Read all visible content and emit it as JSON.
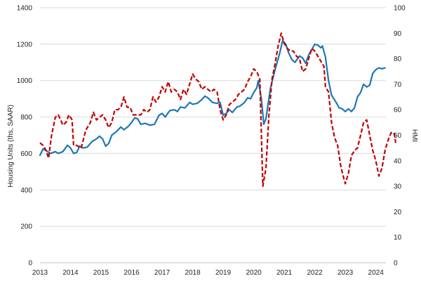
{
  "chart_data": {
    "type": "line",
    "title": "",
    "xlabel": "",
    "ylabel_left": "Housing Units (ths, SAAR)",
    "ylabel_right": "HMI",
    "ylim_left": [
      0,
      1400
    ],
    "ylim_right": [
      0,
      100
    ],
    "yticks_left": [
      "0",
      "200",
      "400",
      "600",
      "800",
      "1000",
      "1200",
      "1400"
    ],
    "yticks_right": [
      "0",
      "10",
      "20",
      "30",
      "40",
      "50",
      "60",
      "70",
      "80",
      "90",
      "100"
    ],
    "xticks": [
      "2013",
      "2014",
      "2015",
      "2016",
      "2017",
      "2018",
      "2019",
      "2020",
      "2021",
      "2022",
      "2023",
      "2024"
    ],
    "xlim": [
      2013.0,
      2024.33
    ],
    "grid": true,
    "legend": "none",
    "series": [
      {
        "axis": "left",
        "color": "#1f77b4",
        "style": "solid",
        "points": [
          [
            2013.0,
            590
          ],
          [
            2013.1,
            625
          ],
          [
            2013.2,
            615
          ],
          [
            2013.35,
            600
          ],
          [
            2013.5,
            610
          ],
          [
            2013.6,
            600
          ],
          [
            2013.75,
            610
          ],
          [
            2013.9,
            645
          ],
          [
            2014.0,
            630
          ],
          [
            2014.1,
            600
          ],
          [
            2014.2,
            605
          ],
          [
            2014.3,
            640
          ],
          [
            2014.4,
            630
          ],
          [
            2014.55,
            635
          ],
          [
            2014.7,
            665
          ],
          [
            2014.85,
            680
          ],
          [
            2014.95,
            695
          ],
          [
            2015.05,
            680
          ],
          [
            2015.15,
            640
          ],
          [
            2015.25,
            655
          ],
          [
            2015.35,
            700
          ],
          [
            2015.5,
            720
          ],
          [
            2015.65,
            745
          ],
          [
            2015.75,
            730
          ],
          [
            2015.9,
            750
          ],
          [
            2016.0,
            770
          ],
          [
            2016.1,
            795
          ],
          [
            2016.2,
            790
          ],
          [
            2016.3,
            760
          ],
          [
            2016.45,
            765
          ],
          [
            2016.6,
            755
          ],
          [
            2016.75,
            760
          ],
          [
            2016.9,
            810
          ],
          [
            2017.0,
            820
          ],
          [
            2017.1,
            800
          ],
          [
            2017.25,
            835
          ],
          [
            2017.4,
            840
          ],
          [
            2017.5,
            830
          ],
          [
            2017.6,
            855
          ],
          [
            2017.75,
            850
          ],
          [
            2017.9,
            880
          ],
          [
            2018.0,
            870
          ],
          [
            2018.15,
            875
          ],
          [
            2018.3,
            895
          ],
          [
            2018.4,
            915
          ],
          [
            2018.5,
            905
          ],
          [
            2018.65,
            880
          ],
          [
            2018.8,
            875
          ],
          [
            2018.9,
            880
          ],
          [
            2019.0,
            810
          ],
          [
            2019.1,
            820
          ],
          [
            2019.2,
            840
          ],
          [
            2019.3,
            825
          ],
          [
            2019.45,
            855
          ],
          [
            2019.55,
            860
          ],
          [
            2019.7,
            880
          ],
          [
            2019.8,
            905
          ],
          [
            2019.9,
            900
          ],
          [
            2020.0,
            935
          ],
          [
            2020.1,
            960
          ],
          [
            2020.15,
            1000
          ],
          [
            2020.25,
            900
          ],
          [
            2020.33,
            760
          ],
          [
            2020.4,
            790
          ],
          [
            2020.55,
            960
          ],
          [
            2020.7,
            1060
          ],
          [
            2020.85,
            1150
          ],
          [
            2020.95,
            1220
          ],
          [
            2021.05,
            1200
          ],
          [
            2021.15,
            1150
          ],
          [
            2021.25,
            1115
          ],
          [
            2021.35,
            1100
          ],
          [
            2021.5,
            1135
          ],
          [
            2021.6,
            1125
          ],
          [
            2021.7,
            1095
          ],
          [
            2021.8,
            1140
          ],
          [
            2021.9,
            1170
          ],
          [
            2022.0,
            1200
          ],
          [
            2022.1,
            1195
          ],
          [
            2022.2,
            1180
          ],
          [
            2022.25,
            1190
          ],
          [
            2022.35,
            1130
          ],
          [
            2022.45,
            1000
          ],
          [
            2022.55,
            920
          ],
          [
            2022.7,
            880
          ],
          [
            2022.8,
            850
          ],
          [
            2022.9,
            845
          ],
          [
            2023.0,
            830
          ],
          [
            2023.1,
            845
          ],
          [
            2023.2,
            830
          ],
          [
            2023.3,
            850
          ],
          [
            2023.4,
            910
          ],
          [
            2023.5,
            935
          ],
          [
            2023.6,
            980
          ],
          [
            2023.7,
            965
          ],
          [
            2023.8,
            975
          ],
          [
            2023.9,
            1040
          ],
          [
            2024.0,
            1060
          ],
          [
            2024.1,
            1070
          ],
          [
            2024.2,
            1065
          ],
          [
            2024.3,
            1070
          ]
        ]
      },
      {
        "axis": "right",
        "color": "#c00000",
        "style": "dashed",
        "points": [
          [
            2013.0,
            47
          ],
          [
            2013.1,
            46
          ],
          [
            2013.2,
            44
          ],
          [
            2013.28,
            41
          ],
          [
            2013.38,
            50
          ],
          [
            2013.5,
            57
          ],
          [
            2013.6,
            58
          ],
          [
            2013.75,
            54
          ],
          [
            2013.85,
            55
          ],
          [
            2013.95,
            58
          ],
          [
            2014.05,
            56
          ],
          [
            2014.1,
            46
          ],
          [
            2014.2,
            46
          ],
          [
            2014.35,
            45
          ],
          [
            2014.5,
            52
          ],
          [
            2014.65,
            55
          ],
          [
            2014.75,
            59
          ],
          [
            2014.85,
            56
          ],
          [
            2014.95,
            57
          ],
          [
            2015.05,
            58
          ],
          [
            2015.15,
            56
          ],
          [
            2015.25,
            53
          ],
          [
            2015.35,
            55
          ],
          [
            2015.45,
            60
          ],
          [
            2015.55,
            60
          ],
          [
            2015.65,
            61
          ],
          [
            2015.75,
            65
          ],
          [
            2015.85,
            61
          ],
          [
            2015.95,
            61
          ],
          [
            2016.05,
            58
          ],
          [
            2016.15,
            58
          ],
          [
            2016.3,
            58
          ],
          [
            2016.4,
            60
          ],
          [
            2016.5,
            59
          ],
          [
            2016.6,
            60
          ],
          [
            2016.7,
            65
          ],
          [
            2016.8,
            63
          ],
          [
            2016.9,
            65
          ],
          [
            2017.0,
            69
          ],
          [
            2017.1,
            67
          ],
          [
            2017.2,
            71
          ],
          [
            2017.3,
            67
          ],
          [
            2017.4,
            68
          ],
          [
            2017.5,
            67
          ],
          [
            2017.6,
            64
          ],
          [
            2017.7,
            68
          ],
          [
            2017.8,
            66
          ],
          [
            2017.9,
            70
          ],
          [
            2018.0,
            74
          ],
          [
            2018.1,
            72
          ],
          [
            2018.2,
            71
          ],
          [
            2018.3,
            68
          ],
          [
            2018.4,
            69
          ],
          [
            2018.5,
            68
          ],
          [
            2018.6,
            67
          ],
          [
            2018.7,
            68
          ],
          [
            2018.8,
            67
          ],
          [
            2018.9,
            60
          ],
          [
            2019.0,
            56
          ],
          [
            2019.1,
            58
          ],
          [
            2019.2,
            62
          ],
          [
            2019.3,
            63
          ],
          [
            2019.4,
            64
          ],
          [
            2019.5,
            66
          ],
          [
            2019.6,
            67
          ],
          [
            2019.7,
            68
          ],
          [
            2019.8,
            71
          ],
          [
            2019.9,
            73
          ],
          [
            2020.0,
            76
          ],
          [
            2020.1,
            75
          ],
          [
            2020.2,
            72
          ],
          [
            2020.3,
            30
          ],
          [
            2020.4,
            37
          ],
          [
            2020.5,
            58
          ],
          [
            2020.6,
            72
          ],
          [
            2020.7,
            78
          ],
          [
            2020.8,
            85
          ],
          [
            2020.9,
            90
          ],
          [
            2021.0,
            86
          ],
          [
            2021.1,
            84
          ],
          [
            2021.2,
            83
          ],
          [
            2021.3,
            83
          ],
          [
            2021.4,
            81
          ],
          [
            2021.5,
            80
          ],
          [
            2021.6,
            75
          ],
          [
            2021.7,
            76
          ],
          [
            2021.8,
            80
          ],
          [
            2021.9,
            84
          ],
          [
            2022.0,
            83
          ],
          [
            2022.1,
            81
          ],
          [
            2022.2,
            79
          ],
          [
            2022.3,
            77
          ],
          [
            2022.35,
            69
          ],
          [
            2022.45,
            67
          ],
          [
            2022.55,
            55
          ],
          [
            2022.65,
            49
          ],
          [
            2022.75,
            46
          ],
          [
            2022.85,
            38
          ],
          [
            2022.95,
            33
          ],
          [
            2023.0,
            31
          ],
          [
            2023.1,
            35
          ],
          [
            2023.2,
            42
          ],
          [
            2023.3,
            44
          ],
          [
            2023.4,
            45
          ],
          [
            2023.5,
            50
          ],
          [
            2023.6,
            55
          ],
          [
            2023.7,
            56
          ],
          [
            2023.8,
            50
          ],
          [
            2023.9,
            44
          ],
          [
            2024.0,
            40
          ],
          [
            2024.1,
            34
          ],
          [
            2024.2,
            37
          ],
          [
            2024.3,
            44
          ],
          [
            2024.4,
            48
          ],
          [
            2024.5,
            51
          ],
          [
            2024.6,
            51
          ],
          [
            2024.65,
            47
          ]
        ]
      }
    ]
  }
}
